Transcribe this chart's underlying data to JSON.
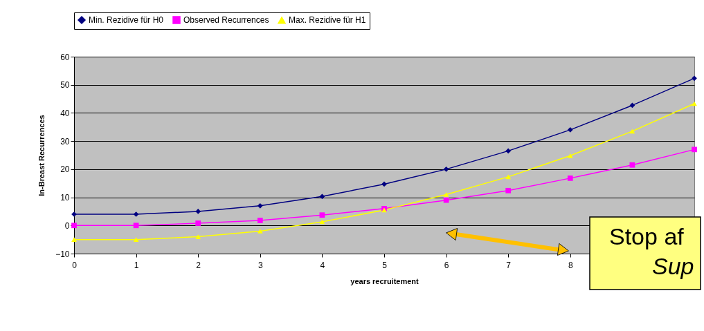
{
  "chart_data": {
    "type": "line",
    "xlabel": "years recruitement",
    "ylabel": "In-Breast Recurrences",
    "categories": [
      "0",
      "1",
      "2",
      "3",
      "4",
      "5",
      "6",
      "7",
      "8",
      null,
      null
    ],
    "series": [
      {
        "name": "Min. Rezidive für H0",
        "color": "#000080",
        "marker": "diamond",
        "values": [
          4,
          4,
          5,
          7,
          10.3,
          14.7,
          20,
          26.5,
          34,
          42.7,
          52.3
        ]
      },
      {
        "name": "Observed Recurrences",
        "color": "#ff00ff",
        "marker": "square",
        "values": [
          0,
          0,
          0.8,
          1.8,
          3.7,
          6,
          9,
          12.4,
          16.8,
          21.5,
          27
        ]
      },
      {
        "name": "Max. Rezidive für H1",
        "color": "#ffff00",
        "marker": "triangle",
        "values": [
          -5,
          -5,
          -4,
          -2,
          1.3,
          5.5,
          11,
          17.3,
          24.8,
          33.5,
          43.3
        ]
      }
    ],
    "ylim": [
      -10,
      60
    ],
    "yticks": [
      -10,
      0,
      10,
      20,
      30,
      40,
      50,
      60
    ],
    "grid": "y",
    "legend": "top",
    "annotations": [
      "Stop af",
      "Sup"
    ]
  }
}
